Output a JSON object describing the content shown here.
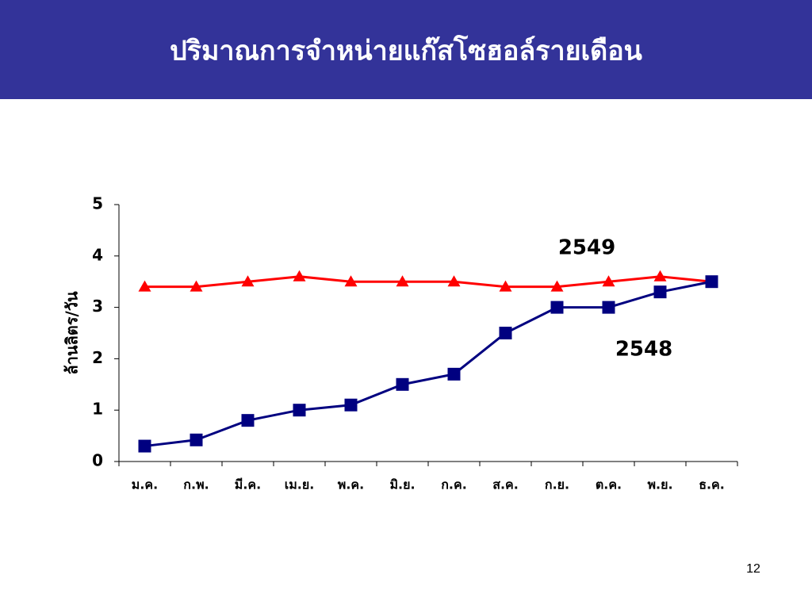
{
  "header": {
    "title": "ปริมาณการจำหน่ายแก๊สโซฮอล์รายเดือน"
  },
  "chart_data": {
    "type": "line",
    "y_label": "ล้านลิตร/วัน",
    "categories": [
      "ม.ค.",
      "ก.พ.",
      "มี.ค.",
      "เม.ย.",
      "พ.ค.",
      "มิ.ย.",
      "ก.ค.",
      "ส.ค.",
      "ก.ย.",
      "ต.ค.",
      "พ.ย.",
      "ธ.ค."
    ],
    "series": [
      {
        "name": "2549",
        "color": "#ff0000",
        "marker": "triangle",
        "values": [
          3.4,
          3.4,
          3.5,
          3.6,
          3.5,
          3.5,
          3.5,
          3.4,
          3.4,
          3.5,
          3.6,
          3.5
        ]
      },
      {
        "name": "2548",
        "color": "#000080",
        "marker": "square",
        "values": [
          0.3,
          0.42,
          0.8,
          1.0,
          1.1,
          1.5,
          1.7,
          2.5,
          3.0,
          3.0,
          3.3,
          3.5
        ]
      }
    ],
    "ylim": [
      0,
      5
    ],
    "yticks": [
      0,
      1,
      2,
      3,
      4,
      5
    ]
  },
  "footer": {
    "page_number": "12"
  }
}
